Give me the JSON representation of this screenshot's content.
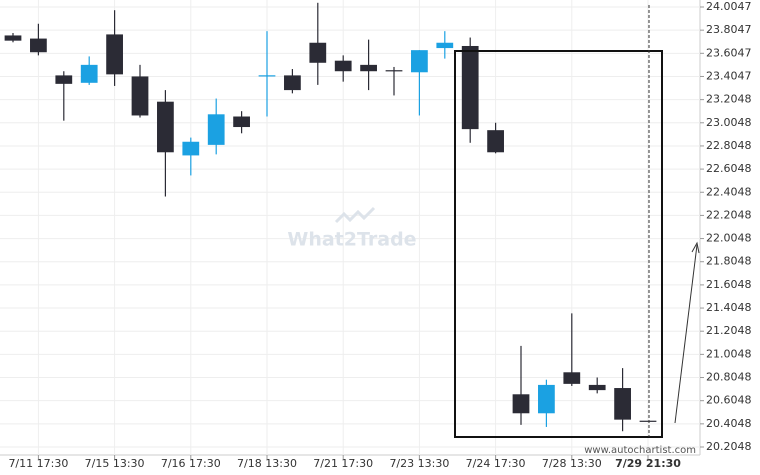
{
  "chart_data": {
    "type": "candlestick",
    "categories": [
      null,
      "7/11 17:30",
      null,
      null,
      "7/15 13:30",
      null,
      null,
      "7/16 17:30",
      null,
      null,
      "7/18 13:30",
      null,
      null,
      "7/21 17:30",
      null,
      null,
      "7/23 13:30",
      null,
      null,
      "7/24 17:30",
      null,
      null,
      "7/28 13:30",
      null,
      null,
      "7/29 21:30"
    ],
    "open": [
      23.759,
      23.732,
      23.414,
      23.35,
      23.768,
      23.405,
      23.187,
      22.723,
      22.814,
      23.059,
      23.41,
      23.414,
      23.696,
      23.541,
      23.505,
      23.459,
      23.441,
      23.65,
      23.668,
      22.941,
      20.66,
      20.496,
      20.85,
      20.741,
      20.714,
      20.432
    ],
    "high": [
      23.78,
      23.86,
      23.45,
      23.578,
      23.977,
      23.505,
      23.287,
      22.877,
      23.214,
      23.105,
      23.796,
      23.469,
      24.041,
      23.587,
      23.723,
      23.487,
      23.632,
      23.796,
      23.741,
      23.005,
      21.078,
      20.786,
      21.359,
      20.805,
      20.886,
      20.432
    ],
    "low": [
      23.7,
      23.587,
      23.023,
      23.332,
      23.323,
      23.05,
      22.368,
      22.55,
      22.732,
      22.914,
      23.059,
      23.259,
      23.332,
      23.36,
      23.287,
      23.241,
      23.068,
      23.559,
      22.832,
      22.741,
      20.396,
      20.378,
      20.732,
      20.668,
      20.341,
      20.432
    ],
    "close": [
      23.714,
      23.614,
      23.341,
      23.505,
      23.423,
      23.068,
      22.75,
      22.841,
      23.078,
      22.968,
      23.415,
      23.287,
      23.523,
      23.45,
      23.45,
      23.45,
      23.632,
      23.696,
      22.95,
      22.75,
      20.496,
      20.741,
      20.75,
      20.696,
      20.441,
      20.432
    ],
    "up_color": "#1ba1e2",
    "down_color": "#2b2b35",
    "ylim": [
      20.2048,
      24.0047
    ],
    "yticks": [
      24.0047,
      23.8047,
      23.6047,
      23.4047,
      23.2048,
      23.0048,
      22.8048,
      22.6048,
      22.4048,
      22.2048,
      22.0048,
      21.8048,
      21.6048,
      21.4048,
      21.2048,
      21.0048,
      20.8048,
      20.6048,
      20.4048,
      20.2048
    ],
    "grid": true,
    "watermark": "What2Trade",
    "source": "www.autochartist.com"
  }
}
